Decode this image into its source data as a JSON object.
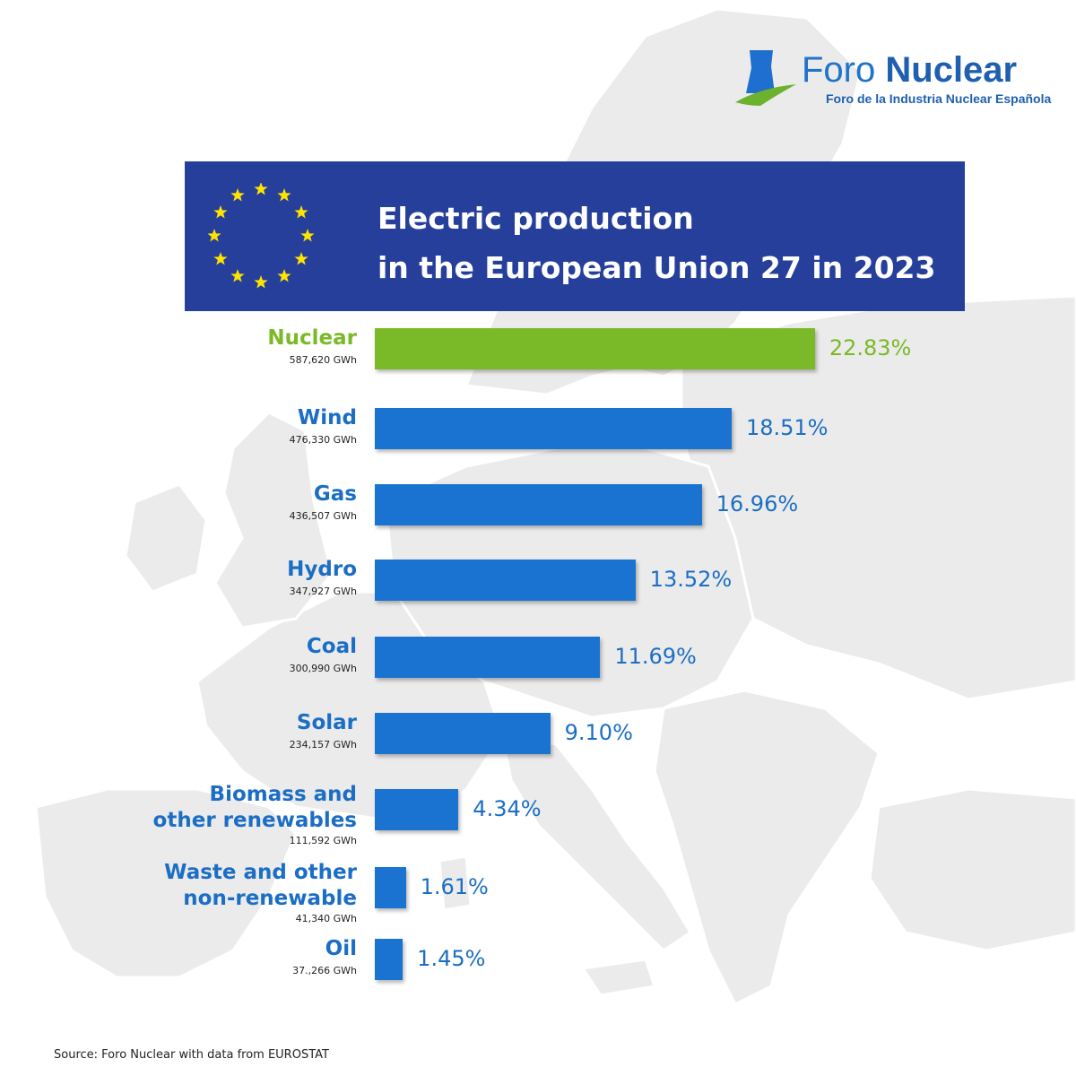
{
  "logo": {
    "name_light": "Foro",
    "name_bold": "Nuclear",
    "tagline": "Foro de la Industria Nuclear Española"
  },
  "colors": {
    "banner": "#253f9a",
    "primary_bar": "#1a73d1",
    "highlight_bar": "#7ab927",
    "label_blue": "#1c6ec4",
    "stars": "#ffe300",
    "map": "#ebebeb"
  },
  "background_icon": "europe-map",
  "chart_data": {
    "type": "bar",
    "orientation": "horizontal",
    "title": "Electric production in the European Union 27 in 2023",
    "title_lines": [
      "Electric production",
      "in the European Union 27 in 2023"
    ],
    "unit": "%",
    "categories": [
      {
        "lines": [
          "Nuclear"
        ],
        "gwh": "587,620 GWh",
        "value": 22.83,
        "label": "22.83%",
        "highlight": true
      },
      {
        "lines": [
          "Wind"
        ],
        "gwh": "476,330 GWh",
        "value": 18.51,
        "label": "18.51%",
        "highlight": false
      },
      {
        "lines": [
          "Gas"
        ],
        "gwh": "436,507 GWh",
        "value": 16.96,
        "label": "16.96%",
        "highlight": false
      },
      {
        "lines": [
          "Hydro"
        ],
        "gwh": "347,927 GWh",
        "value": 13.52,
        "label": "13.52%",
        "highlight": false
      },
      {
        "lines": [
          "Coal"
        ],
        "gwh": "300,990 GWh",
        "value": 11.69,
        "label": "11.69%",
        "highlight": false
      },
      {
        "lines": [
          "Solar"
        ],
        "gwh": "234,157 GWh",
        "value": 9.1,
        "label": "9.10%",
        "highlight": false
      },
      {
        "lines": [
          "Biomass and",
          "other renewables"
        ],
        "gwh": "111,592 GWh",
        "value": 4.34,
        "label": "4.34%",
        "highlight": false
      },
      {
        "lines": [
          "Waste and other",
          "non-renewable"
        ],
        "gwh": "41,340 GWh",
        "value": 1.61,
        "label": "1.61%",
        "highlight": false
      },
      {
        "lines": [
          "Oil"
        ],
        "gwh": "37.,266 GWh",
        "value": 1.45,
        "label": "1.45%",
        "highlight": false
      }
    ]
  },
  "source": "Source: Foro Nuclear with data from EUROSTAT"
}
